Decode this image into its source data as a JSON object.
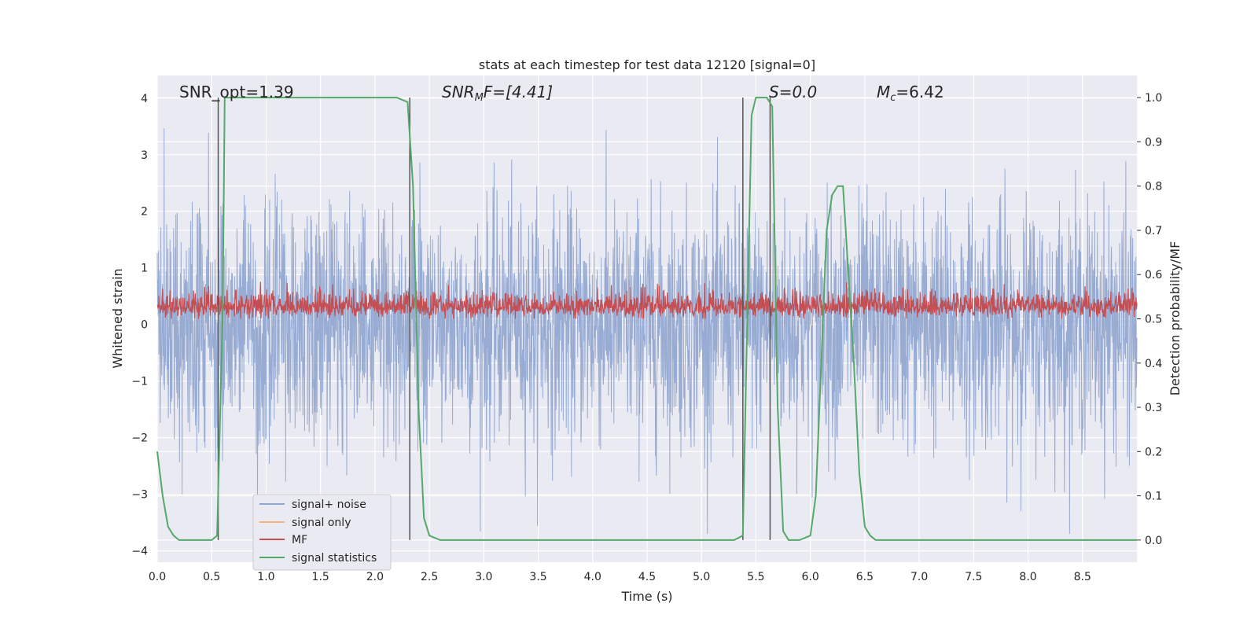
{
  "chart_data": {
    "type": "line",
    "title": "stats at each timestep for test data 12120 [signal=0]",
    "xlabel": "Time (s)",
    "ylabel_left": "Whitened strain",
    "ylabel_right": "Detection probability/MF",
    "xlim": [
      0,
      9
    ],
    "ylim_left": [
      -4.2,
      4.4
    ],
    "ylim_right": [
      -0.05,
      1.05
    ],
    "x_ticks": [
      "0.0",
      "0.5",
      "1.0",
      "1.5",
      "2.0",
      "2.5",
      "3.0",
      "3.5",
      "4.0",
      "4.5",
      "5.0",
      "5.5",
      "6.0",
      "6.5",
      "7.0",
      "7.5",
      "8.0",
      "8.5"
    ],
    "y_left_ticks": [
      "4",
      "3",
      "2",
      "1",
      "0",
      "−1",
      "−2",
      "−3",
      "−4"
    ],
    "y_right_ticks": [
      "1.0",
      "0.9",
      "0.8",
      "0.7",
      "0.6",
      "0.5",
      "0.4",
      "0.3",
      "0.2",
      "0.1",
      "0.0"
    ],
    "grid": true,
    "legend_position": "lower-left",
    "annotations": {
      "snr_opt": "SNR_opt=1.39",
      "snr_mf_base": "SNR",
      "snr_mf_sub": "M",
      "snr_mf_rest": "F=[4.41]",
      "s_label": "S=0.0",
      "mc_base": "M",
      "mc_sub": "c",
      "mc_rest": "=6.42"
    },
    "vertical_markers_s": [
      0.56,
      2.32,
      5.38,
      5.63
    ],
    "series": [
      {
        "name": "signal+ noise",
        "color": "#92a8d1",
        "axis": "left",
        "description_note": "",
        "amplitude_range": [
          -3.7,
          4.0
        ]
      },
      {
        "name": "signal only",
        "color": "#f4b183",
        "axis": "left",
        "values": []
      },
      {
        "name": "MF",
        "color": "#c44e52",
        "axis": "right",
        "range": [
          0.5,
          0.6
        ]
      },
      {
        "name": "signal statistics",
        "color": "#55a868",
        "axis": "right",
        "x": [
          0.0,
          0.05,
          0.1,
          0.15,
          0.2,
          0.3,
          0.4,
          0.5,
          0.55,
          0.6,
          0.62,
          0.65,
          0.8,
          1.0,
          1.5,
          2.0,
          2.2,
          2.3,
          2.35,
          2.4,
          2.45,
          2.5,
          2.6,
          3.0,
          4.0,
          5.0,
          5.3,
          5.38,
          5.42,
          5.46,
          5.5,
          5.6,
          5.65,
          5.7,
          5.75,
          5.8,
          5.9,
          6.0,
          6.05,
          6.1,
          6.15,
          6.2,
          6.25,
          6.3,
          6.35,
          6.4,
          6.45,
          6.5,
          6.55,
          6.6,
          7.0,
          8.0,
          9.0
        ],
        "values": [
          0.2,
          0.1,
          0.03,
          0.01,
          0.0,
          0.0,
          0.0,
          0.0,
          0.01,
          0.5,
          1.0,
          1.0,
          1.0,
          1.0,
          1.0,
          1.0,
          1.0,
          0.99,
          0.8,
          0.3,
          0.05,
          0.01,
          0.0,
          0.0,
          0.0,
          0.0,
          0.0,
          0.01,
          0.5,
          0.96,
          1.0,
          1.0,
          0.98,
          0.3,
          0.02,
          0.0,
          0.0,
          0.01,
          0.1,
          0.4,
          0.7,
          0.78,
          0.8,
          0.8,
          0.6,
          0.4,
          0.15,
          0.03,
          0.01,
          0.0,
          0.0,
          0.0,
          0.0
        ]
      }
    ]
  }
}
